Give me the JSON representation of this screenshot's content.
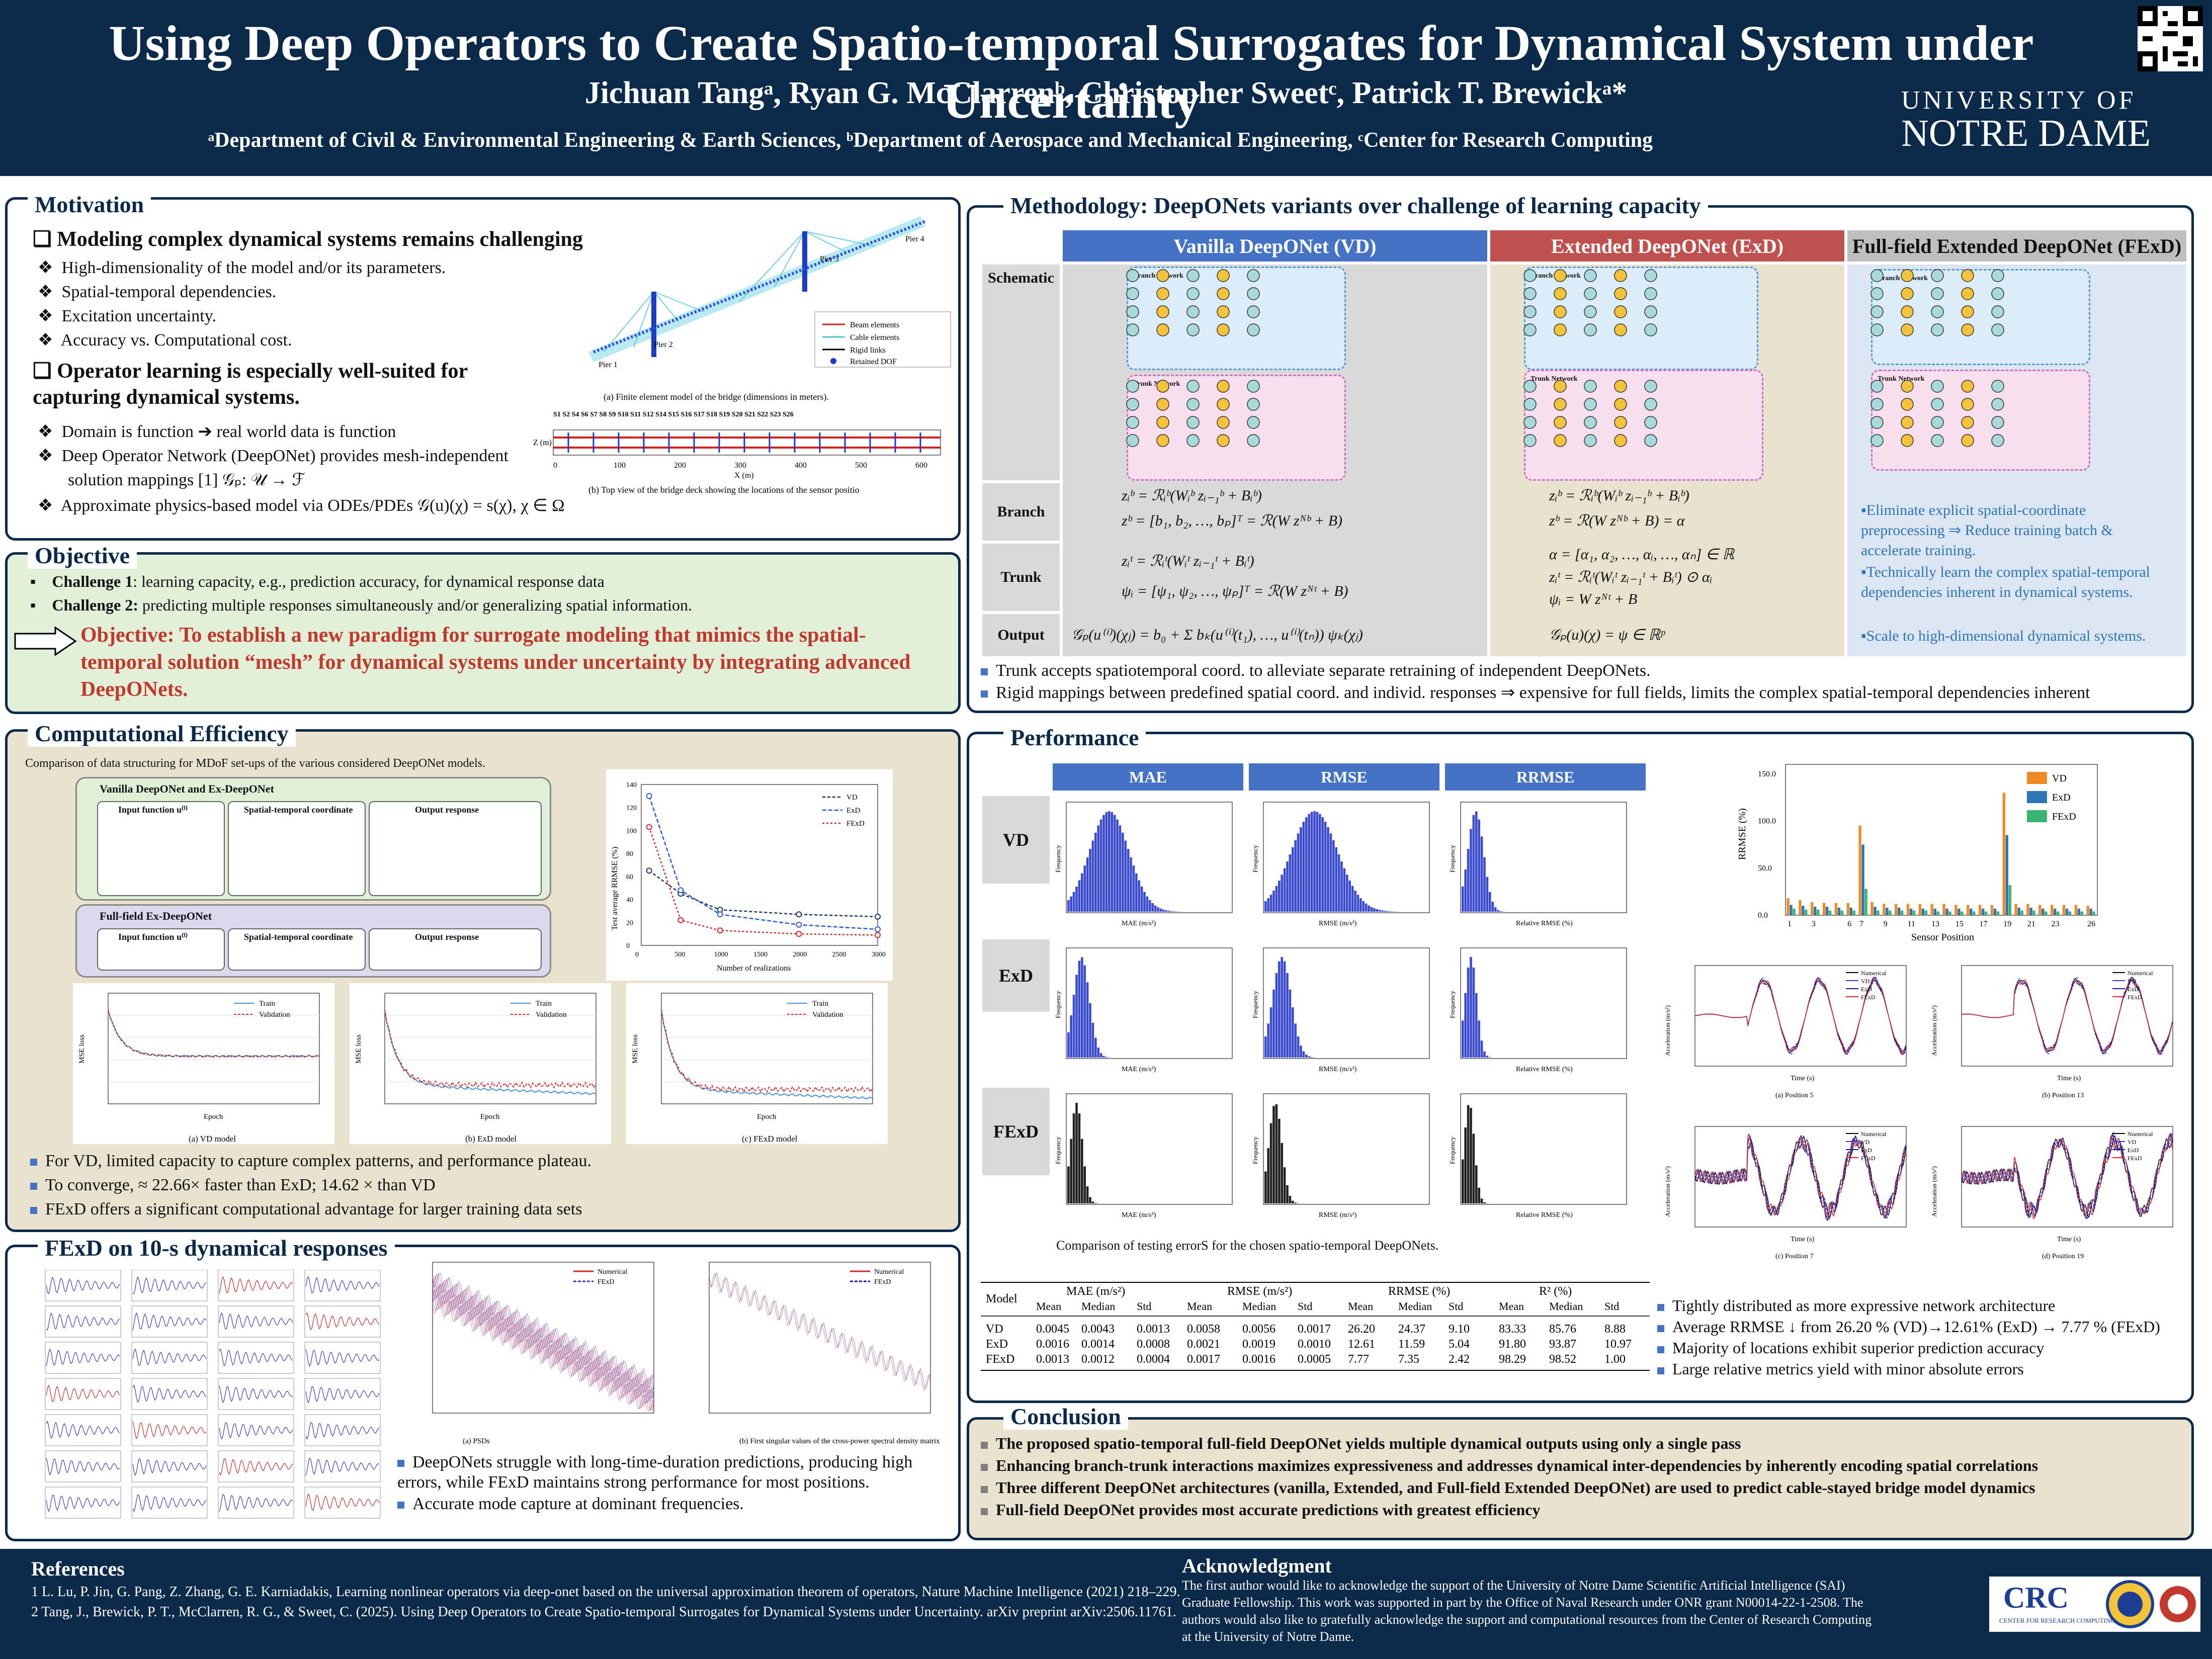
{
  "header": {
    "title": "Using Deep Operators to Create Spatio-temporal Surrogates for Dynamical System under Uncertainty",
    "authors": "Jichuan Tangᵃ, Ryan G. McClarrenᵇ, Christopher Sweetᶜ, Patrick T. Brewickᵃ*",
    "affiliations": "ᵃDepartment of Civil & Environmental Engineering & Earth Sciences, ᵇDepartment of Aerospace and Mechanical Engineering, ᶜCenter for Research Computing",
    "university_line1": "UNIVERSITY OF",
    "university_line2": "NOTRE DAME"
  },
  "motivation": {
    "title": "Motivation",
    "heading1": "Modeling complex dynamical systems remains challenging",
    "items1": [
      "High-dimensionality of the model and/or its parameters.",
      "Spatial-temporal dependencies.",
      "Excitation uncertainty.",
      "Accuracy vs. Computational cost."
    ],
    "heading2": "Operator learning is especially well-suited for capturing dynamical systems.",
    "items2": [
      "Domain is function ➔ real world data is function",
      "Deep Operator Network (DeepONet) provides mesh-independent",
      "solution mappings [1] 𝒢ₚ: 𝒰 → ℱ",
      "Approximate physics-based model via ODEs/PDEs  𝒢(u)(χ) = s(χ),   χ ∈ Ω"
    ],
    "fig_caption_a": "(a) Finite element model of the bridge (dimensions in meters).",
    "fig_caption_b": "(b) Top view of the bridge deck showing the locations of the sensor positio",
    "legend": [
      "Beam elements",
      "Cable elements",
      "Rigid links",
      "Retained DOF"
    ],
    "piers": [
      "Pier 1",
      "Pier 2",
      "Pier 3",
      "Pier 4"
    ],
    "sensor_labels": "S1 S2 S4 S6 S7 S8 S9 S10 S11 S12 S14 S15 S16 S17 S18 S19 S20 S21 S22 S23 S26",
    "deck_xlabel": "X (m)",
    "deck_ylabel": "Z (m)",
    "deck_xticks": [
      "0",
      "100",
      "200",
      "300",
      "400",
      "500",
      "600"
    ]
  },
  "objective": {
    "title": "Objective",
    "c1_label": "Challenge 1",
    "c1_text": ": learning capacity, e.g., prediction accuracy, for dynamical response data",
    "c2_label": "Challenge 2:",
    "c2_text": " predicting multiple responses simultaneously and/or generalizing spatial information.",
    "statement": "Objective: To establish a new paradigm for surrogate modeling that mimics the spatial-temporal solution “mesh” for dynamical systems under uncertainty by integrating advanced DeepONets."
  },
  "methodology": {
    "title": "Methodology: DeepONets variants over challenge of learning capacity",
    "col_vd": "Vanilla DeepONet (VD)",
    "col_exd": "Extended DeepONet (ExD)",
    "col_fexd": "Full-field Extended DeepONet (FExD)",
    "rows": [
      "Schematic",
      "Branch",
      "Trunk",
      "Output"
    ],
    "branch_net": "Branch Network",
    "trunk_net": "Trunk Network",
    "fexd_bullets": [
      "Eliminate explicit spatial-coordinate preprocessing ⇒ Reduce training batch & accelerate training.",
      "Technically learn the complex spatial-temporal dependencies inherent in dynamical systems.",
      "Scale to high-dimensional dynamical systems."
    ],
    "notes": [
      "Trunk accepts spatiotemporal coord. to alleviate separate retraining of independent DeepONets.",
      "Rigid mappings between predefined spatial coord. and individ. responses ⇒ expensive for full fields, limits the complex spatial-temporal dependencies inherent"
    ],
    "eq_vd_branch1": "zᵢᵇ = ℛᵢᵇ(Wᵢᵇ zᵢ₋₁ᵇ + Bᵢᵇ)",
    "eq_vd_branch2": "zᵇ = [b₁, b₂, …, bₚ]ᵀ = ℛ(W zᴺᵇ + B)",
    "eq_vd_trunk1": "zᵢᵗ = ℛᵢᵗ(Wᵢᵗ zᵢ₋₁ᵗ + Bᵢᵗ)",
    "eq_vd_trunk2": "ψᵢ = [ψ₁, ψ₂, …, ψₚ]ᵀ = ℛ(W zᴺᵗ + B)",
    "eq_vd_output": "𝒢ₚ(u⁽ⁱ⁾)(χⱼ) = b₀ + Σ bₖ(u⁽ⁱ⁾(t₁), …, u⁽ⁱ⁾(tₙ)) ψₖ(χⱼ)",
    "eq_exd_branch1": "zᵢᵇ = ℛᵢᵇ(Wᵢᵇ zᵢ₋₁ᵇ + Bᵢᵇ)",
    "eq_exd_branch2": "zᵇ = ℛ(W zᴺᵇ + B) = α",
    "eq_exd_trunk1": "α = [α₁, α₂, …, αᵢ, …, αₙ] ∈ ℝ",
    "eq_exd_trunk2": "zᵢᵗ = ℛᵢᵗ(Wᵢᵗ zᵢ₋₁ᵗ + Bᵢᵗ) ⊙ αᵢ",
    "eq_exd_trunk3": "ψᵢ = W zᴺᵗ + B",
    "eq_exd_output": "𝒢ₚ(u)(χ) = ψ ∈ ℝᵖ"
  },
  "computational": {
    "title": "Computational Efficiency",
    "caption": "Comparison of data structuring for MDoF set-ups of the various considered DeepONet models.",
    "box1_title": "Vanilla DeepONet and Ex-DeepONet",
    "box2_title": "Full-field Ex-DeepONet",
    "col_input": "Input function u⁽ⁱ⁾",
    "col_coord": "Spatial-temporal coordinate",
    "col_output": "Output response",
    "legend": [
      "VD",
      "ExD",
      "FExD"
    ],
    "chart_ylabel": "Test average RRMSE (%)",
    "chart_xlabel": "Number of realizations",
    "loss_captions": [
      "(a) VD model",
      "(b) ExD model",
      "(c) FExD model"
    ],
    "loss_legend": [
      "Train",
      "Validation"
    ],
    "loss_xlabel": "Epoch",
    "loss_ylabel": "MSE loss",
    "bullets": [
      "For VD, limited capacity to capture complex patterns, and performance plateau.",
      "To converge, ≈ 22.66× faster than ExD; 14.62 × than VD",
      "FExD offers a significant computational advantage for larger training data sets"
    ]
  },
  "fexd10": {
    "title": "FExD on 10-s dynamical responses",
    "psd_caption": "(a) PSDs",
    "sv_caption": "(b) First singular values of the cross-power spectral density matrix",
    "legend": [
      "Numerical",
      "FExD"
    ],
    "bullets": [
      "DeepONets struggle with long-time-duration predictions, producing high errors, while FExD maintains strong performance for most positions.",
      "Accurate mode capture at dominant frequencies."
    ]
  },
  "performance": {
    "title": "Performance",
    "cols": [
      "MAE",
      "RMSE",
      "RRMSE"
    ],
    "rows": [
      "VD",
      "ExD",
      "FExD"
    ],
    "hist_xlabels": [
      "MAE (m/s²)",
      "RMSE (m/s²)",
      "Relative RMSE (%)"
    ],
    "hist_ylabel": "Frequency",
    "hist_caption": "Comparison of testing errorS for the chosen spatio-temporal DeepONets.",
    "bar_legend": [
      "VD",
      "ExD",
      "FExD"
    ],
    "bar_ylabel": "RRMSE (%)",
    "bar_xlabel": "Sensor Position",
    "bar_yticks": [
      "0.0",
      "50.0",
      "100.0",
      "150.0"
    ],
    "bar_xticks": [
      "1",
      "3",
      "6",
      "7",
      "9",
      "11",
      "13",
      "15",
      "17",
      "19",
      "21",
      "23",
      "26"
    ],
    "ts_captions": [
      "(a) Position 5",
      "(b) Position 13",
      "(c) Position 7",
      "(d) Position 19"
    ],
    "ts_legend": [
      "Numerical",
      "VD",
      "ExD",
      "FExD"
    ],
    "ts_xlabel": "Time (s)",
    "ts_ylabel": "Acceleration (m/s²)",
    "table": {
      "group_headers": [
        "Model",
        "MAE (m/s²)",
        "RMSE (m/s²)",
        "RRMSE (%)",
        "R² (%)"
      ],
      "sub_headers": [
        "Mean",
        "Median",
        "Std",
        "Mean",
        "Median",
        "Std",
        "Mean",
        "Median",
        "Std",
        "Mean",
        "Median",
        "Std"
      ],
      "rows": [
        [
          "VD",
          "0.0045",
          "0.0043",
          "0.0013",
          "0.0058",
          "0.0056",
          "0.0017",
          "26.20",
          "24.37",
          "9.10",
          "83.33",
          "85.76",
          "8.88"
        ],
        [
          "ExD",
          "0.0016",
          "0.0014",
          "0.0008",
          "0.0021",
          "0.0019",
          "0.0010",
          "12.61",
          "11.59",
          "5.04",
          "91.80",
          "93.87",
          "10.97"
        ],
        [
          "FExD",
          "0.0013",
          "0.0012",
          "0.0004",
          "0.0017",
          "0.0016",
          "0.0005",
          "7.77",
          "7.35",
          "2.42",
          "98.29",
          "98.52",
          "1.00"
        ]
      ]
    },
    "bullets": [
      "Tightly distributed as more expressive network architecture",
      "Average RRMSE ↓ from 26.20 % (VD)→12.61% (ExD) → 7.77 % (FExD)",
      "Majority of locations exhibit superior prediction accuracy",
      "Large relative metrics yield with minor absolute errors"
    ]
  },
  "conclusion": {
    "title": "Conclusion",
    "items": [
      "The proposed spatio-temporal full-field DeepONet yields multiple dynamical outputs using only a single pass",
      "Enhancing branch-trunk interactions maximizes expressiveness and addresses dynamical inter-dependencies by inherently encoding spatial correlations",
      "Three different DeepONet architectures (vanilla, Extended, and Full-field Extended DeepONet) are used to predict cable-stayed bridge model dynamics",
      "Full-field DeepONet provides most accurate predictions with greatest efficiency"
    ]
  },
  "references": {
    "title": "References",
    "items": [
      "1   L. Lu, P. Jin, G. Pang, Z. Zhang, G. E. Karniadakis, Learning nonlinear operators via deep-onet based on the universal approximation theorem of operators, Nature Machine Intelligence (2021) 218–229.",
      "2   Tang, J., Brewick, P. T., McClarren, R. G., & Sweet, C. (2025). Using Deep Operators to Create Spatio-temporal Surrogates for Dynamical Systems under Uncertainty. arXiv preprint arXiv:2506.11761."
    ]
  },
  "acknowledgment": {
    "title": "Acknowledgment",
    "lines": [
      "The first author would like to acknowledge the support of the University of Notre Dame Scientific Artificial Intelligence (SAI)",
      "Graduate Fellowship. This work was supported in part by the Office of Naval Research under ONR grant N00014-22-1-2508. The",
      "authors would also like to gratefully acknowledge the support and computational resources from the Center of Research Computing",
      "at the University of Notre Dame."
    ],
    "crc_logo": "CRC",
    "crc_sub": "CENTER FOR RESEARCH COMPUTING"
  },
  "chart_data": [
    {
      "type": "line",
      "title": "",
      "xlabel": "Number of realizations",
      "ylabel": "Test average RRMSE (%)",
      "x": [
        100,
        500,
        1000,
        2000,
        3000
      ],
      "series": [
        {
          "name": "VD",
          "values": [
            65,
            45,
            31,
            27,
            25
          ]
        },
        {
          "name": "ExD",
          "values": [
            130,
            48,
            27,
            18,
            14
          ]
        },
        {
          "name": "FExD",
          "values": [
            103,
            22,
            13,
            10,
            9
          ]
        }
      ],
      "xlim": [
        0,
        3000
      ],
      "ylim": [
        0,
        140
      ]
    },
    {
      "type": "bar",
      "title": "",
      "xlabel": "Sensor Position",
      "ylabel": "RRMSE (%)",
      "categories": [
        "1",
        "2",
        "3",
        "4",
        "5",
        "6",
        "7",
        "8",
        "9",
        "10",
        "11",
        "12",
        "13",
        "14",
        "15",
        "16",
        "17",
        "18",
        "19",
        "20",
        "21",
        "22",
        "23",
        "24",
        "25",
        "26"
      ],
      "series": [
        {
          "name": "VD",
          "values": [
            18,
            16,
            14,
            13,
            13,
            13,
            95,
            14,
            12,
            12,
            12,
            12,
            12,
            12,
            11,
            11,
            11,
            11,
            130,
            12,
            12,
            11,
            11,
            11,
            11,
            10
          ]
        },
        {
          "name": "ExD",
          "values": [
            11,
            10,
            9,
            9,
            8,
            8,
            75,
            9,
            8,
            8,
            7,
            7,
            7,
            7,
            7,
            7,
            7,
            7,
            85,
            8,
            8,
            7,
            7,
            7,
            7,
            7
          ]
        },
        {
          "name": "FExD",
          "values": [
            7,
            6,
            6,
            5,
            5,
            5,
            28,
            5,
            5,
            5,
            5,
            5,
            4,
            4,
            4,
            4,
            4,
            4,
            32,
            5,
            5,
            4,
            4,
            4,
            4,
            4
          ]
        }
      ],
      "ylim": [
        0,
        160
      ]
    }
  ]
}
